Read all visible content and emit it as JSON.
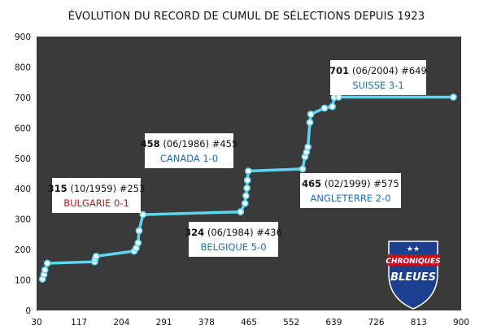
{
  "chart_data": {
    "type": "line",
    "title": "ÉVOLUTION DU RECORD DE CUMUL DE SÉLECTIONS DEPUIS 1923",
    "xlabel": "",
    "ylabel": "",
    "xlim": [
      30,
      900
    ],
    "ylim": [
      0,
      900
    ],
    "xticks": [
      30,
      117,
      204,
      291,
      378,
      465,
      552,
      639,
      726,
      813,
      900
    ],
    "yticks": [
      0,
      100,
      200,
      300,
      400,
      500,
      600,
      700,
      800,
      900
    ],
    "grid": false,
    "background_color": "#3a3a3a",
    "line_color": "#5fd4f2",
    "series": [
      {
        "points": [
          {
            "x": 42,
            "y": 103
          },
          {
            "x": 45,
            "y": 118
          },
          {
            "x": 47,
            "y": 133
          },
          {
            "x": 52,
            "y": 155
          },
          {
            "x": 149,
            "y": 160
          },
          {
            "x": 150,
            "y": 170
          },
          {
            "x": 152,
            "y": 178
          },
          {
            "x": 230,
            "y": 195
          },
          {
            "x": 234,
            "y": 205
          },
          {
            "x": 238,
            "y": 222
          },
          {
            "x": 240,
            "y": 262
          },
          {
            "x": 248,
            "y": 315
          },
          {
            "x": 448,
            "y": 324
          },
          {
            "x": 457,
            "y": 352
          },
          {
            "x": 459,
            "y": 377
          },
          {
            "x": 461,
            "y": 402
          },
          {
            "x": 462,
            "y": 428
          },
          {
            "x": 464,
            "y": 458
          },
          {
            "x": 575,
            "y": 465
          },
          {
            "x": 580,
            "y": 505
          },
          {
            "x": 583,
            "y": 520
          },
          {
            "x": 586,
            "y": 537
          },
          {
            "x": 590,
            "y": 618
          },
          {
            "x": 592,
            "y": 645
          },
          {
            "x": 620,
            "y": 665
          },
          {
            "x": 636,
            "y": 670
          },
          {
            "x": 640,
            "y": 700
          },
          {
            "x": 649,
            "y": 701
          },
          {
            "x": 884,
            "y": 701
          }
        ]
      }
    ],
    "annotations": [
      {
        "value": "315",
        "detail": "(10/1959) #253",
        "subtitle": "BULGARIE 0-1",
        "subtitle_color": "#c0121c"
      },
      {
        "value": "458",
        "detail": "(06/1986) #455",
        "subtitle": "CANADA 1-0",
        "subtitle_color": "#1f6fb5"
      },
      {
        "value": "324",
        "detail": "(06/1984) #436",
        "subtitle": "BELGIQUE 5-0",
        "subtitle_color": "#1f6fb5"
      },
      {
        "value": "465",
        "detail": "(02/1999) #575",
        "subtitle": "ANGLETERRE 2-0",
        "subtitle_color": "#1f6fb5"
      },
      {
        "value": "701",
        "detail": "(06/2004) #649",
        "subtitle": "SUISSE 3-1",
        "subtitle_color": "#1f6fb5"
      }
    ]
  },
  "logo": {
    "line1": "CHRONIQUES",
    "line2": "BLEUES",
    "shield_color": "#1d3f8f",
    "stars": "★★"
  }
}
